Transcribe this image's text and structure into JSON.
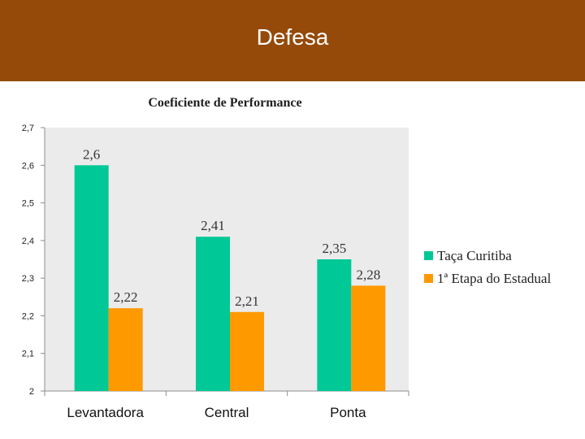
{
  "slide": {
    "title": "Defesa"
  },
  "chart_data": {
    "type": "bar",
    "title": "Coeficiente de Performance",
    "xlabel": "",
    "ylabel": "",
    "categories": [
      "Levantadora",
      "Central",
      "Ponta"
    ],
    "series": [
      {
        "name": "Taça Curitiba",
        "values": [
          2.6,
          2.41,
          2.35
        ],
        "labels": [
          "2,6",
          "2,41",
          "2,35"
        ],
        "color": "#00c896"
      },
      {
        "name": "1ª Etapa do Estadual",
        "values": [
          2.22,
          2.21,
          2.28
        ],
        "labels": [
          "2,22",
          "2,21",
          "2,28"
        ],
        "color": "#ff9900"
      }
    ],
    "ylim": [
      2,
      2.7
    ],
    "yticks": [
      2,
      2.1,
      2.2,
      2.3,
      2.4,
      2.5,
      2.6,
      2.7
    ],
    "ytick_labels": [
      "2",
      "2,1",
      "2,2",
      "2,3",
      "2,4",
      "2,5",
      "2,6",
      "2,7"
    ],
    "grid": false,
    "legend": "right",
    "plot_background": "#ebebeb"
  }
}
